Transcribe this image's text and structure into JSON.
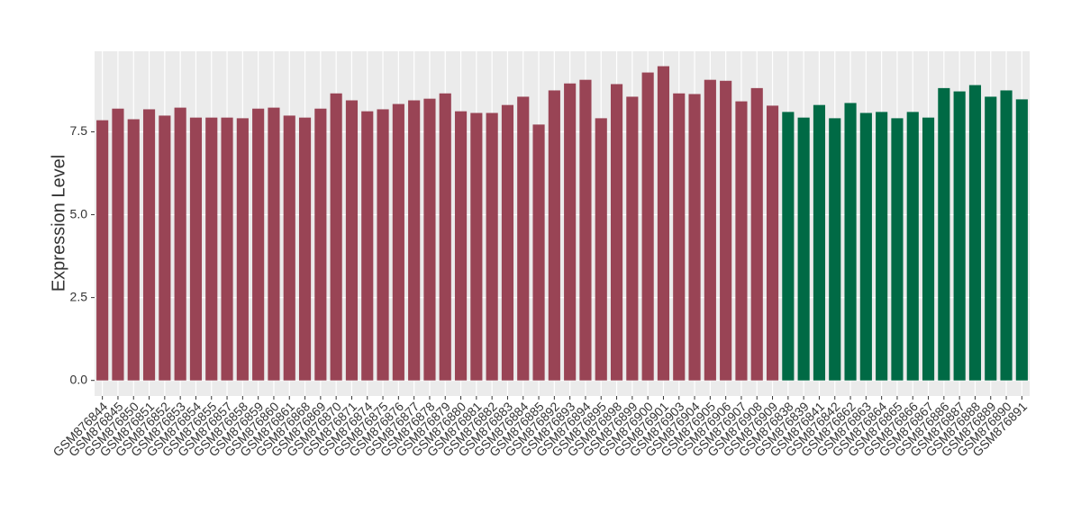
{
  "chart_data": {
    "type": "bar",
    "y_label": "Expression Level",
    "categories": [
      "GSM876844",
      "GSM876845",
      "GSM876850",
      "GSM876851",
      "GSM876852",
      "GSM876853",
      "GSM876854",
      "GSM876855",
      "GSM876857",
      "GSM876858",
      "GSM876859",
      "GSM876860",
      "GSM876861",
      "GSM876868",
      "GSM876869",
      "GSM876870",
      "GSM876871",
      "GSM876874",
      "GSM876875",
      "GSM876876",
      "GSM876877",
      "GSM876878",
      "GSM876879",
      "GSM876880",
      "GSM876881",
      "GSM876882",
      "GSM876883",
      "GSM876884",
      "GSM876885",
      "GSM876892",
      "GSM876893",
      "GSM876894",
      "GSM876895",
      "GSM876898",
      "GSM876899",
      "GSM876900",
      "GSM876901",
      "GSM876903",
      "GSM876904",
      "GSM876905",
      "GSM876906",
      "GSM876907",
      "GSM876908",
      "GSM876909",
      "GSM876838",
      "GSM876839",
      "GSM876841",
      "GSM876842",
      "GSM876862",
      "GSM876863",
      "GSM876864",
      "GSM876865",
      "GSM876866",
      "GSM876867",
      "GSM876886",
      "GSM876887",
      "GSM876888",
      "GSM876889",
      "GSM876890",
      "GSM876891"
    ],
    "values": [
      7.85,
      8.2,
      7.88,
      8.18,
      7.99,
      8.23,
      7.93,
      7.93,
      7.93,
      7.91,
      8.2,
      8.23,
      7.99,
      7.93,
      8.2,
      8.66,
      8.45,
      8.12,
      8.18,
      8.34,
      8.45,
      8.5,
      8.66,
      8.12,
      8.07,
      8.07,
      8.31,
      8.56,
      7.72,
      8.75,
      8.96,
      9.07,
      7.91,
      8.94,
      8.56,
      9.29,
      9.48,
      8.66,
      8.64,
      9.07,
      9.04,
      8.42,
      8.82,
      8.29,
      8.1,
      7.93,
      8.31,
      7.91,
      8.37,
      8.07,
      8.1,
      7.91,
      8.1,
      7.93,
      8.82,
      8.72,
      8.91,
      8.56,
      8.75,
      8.48
    ],
    "colors": [
      "#994455",
      "#994455",
      "#994455",
      "#994455",
      "#994455",
      "#994455",
      "#994455",
      "#994455",
      "#994455",
      "#994455",
      "#994455",
      "#994455",
      "#994455",
      "#994455",
      "#994455",
      "#994455",
      "#994455",
      "#994455",
      "#994455",
      "#994455",
      "#994455",
      "#994455",
      "#994455",
      "#994455",
      "#994455",
      "#994455",
      "#994455",
      "#994455",
      "#994455",
      "#994455",
      "#994455",
      "#994455",
      "#994455",
      "#994455",
      "#994455",
      "#994455",
      "#994455",
      "#994455",
      "#994455",
      "#994455",
      "#994455",
      "#994455",
      "#994455",
      "#994455",
      "#006a45",
      "#006a45",
      "#006a45",
      "#006a45",
      "#006a45",
      "#006a45",
      "#006a45",
      "#006a45",
      "#006a45",
      "#006a45",
      "#006a45",
      "#006a45",
      "#006a45",
      "#006a45",
      "#006a45",
      "#006a45"
    ],
    "ylim": [
      -0.47,
      9.93
    ],
    "yticks": [
      {
        "value": 0,
        "label": "0.0"
      },
      2.5,
      {
        "value": 5,
        "label": "5.0"
      },
      7.5
    ],
    "grid": true
  }
}
